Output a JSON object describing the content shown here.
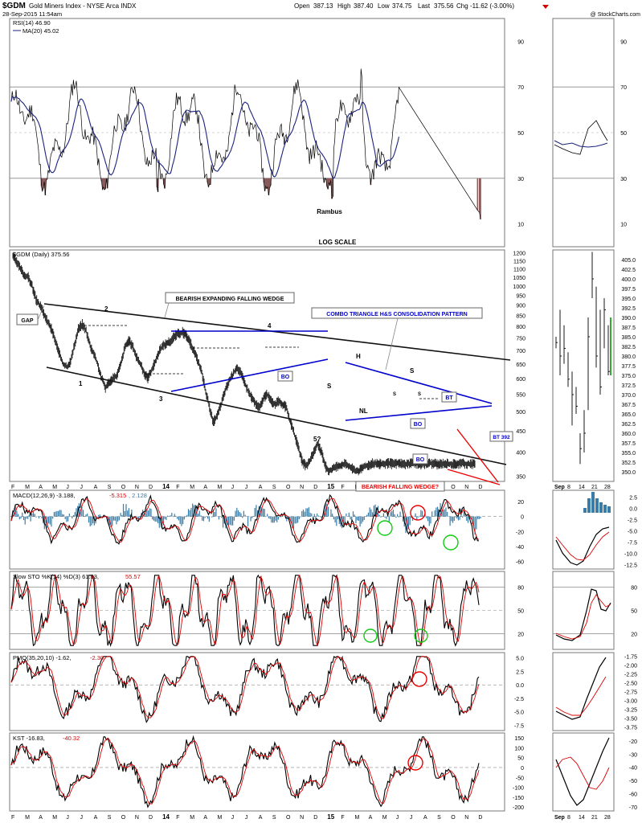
{
  "header": {
    "symbol": "$GDM",
    "name": "Gold Miners Index - NYSE Arca INDX",
    "date": "28-Sep-2015 11:54am",
    "open_label": "Open",
    "open": "387.13",
    "high_label": "High",
    "high": "387.40",
    "low_label": "Low",
    "low": "374.75",
    "last_label": "Last",
    "last": "375.56",
    "chg_label": "Chg",
    "chg": "-11.62 (-3.00%)",
    "credit": "@ StockCharts.com"
  },
  "rsi": {
    "label": "RSI(14) 46.90",
    "ma_label": "MA(20) 45.02",
    "ticks": [
      "90",
      "70",
      "50",
      "30",
      "10"
    ],
    "note1": "Rambus",
    "note2": "LOG SCALE"
  },
  "price": {
    "label": "$GDM (Daily) 375.56",
    "left_ticks": [
      "1200",
      "1150",
      "1100",
      "1050",
      "1000",
      "950",
      "900",
      "850",
      "800",
      "750",
      "700",
      "650",
      "600",
      "550",
      "500",
      "450",
      "400",
      "350"
    ],
    "right_ticks": [
      "405.0",
      "402.5",
      "400.0",
      "397.5",
      "395.0",
      "392.5",
      "390.0",
      "387.5",
      "385.0",
      "382.5",
      "380.0",
      "377.5",
      "375.0",
      "372.5",
      "370.0",
      "367.5",
      "365.0",
      "362.5",
      "360.0",
      "357.5",
      "355.0",
      "352.5",
      "350.0"
    ],
    "annotations": {
      "gap": "GAP",
      "wedge": "BEARISH EXPANDING FALLING WEDGE",
      "combo": "COMBO TRIANGLE H&S CONSOLIDATION PATTERN",
      "bo1": "BO",
      "bo2": "BO",
      "bo3": "BO",
      "bt1": "BT",
      "bt392": "BT 392",
      "falling": "BEARISH FALLING WEDGE?",
      "p1": "1",
      "p2": "2",
      "p3": "3",
      "p4": "4",
      "p5": "5?",
      "h": "H",
      "s1": "S",
      "s2": "S",
      "s3": "S",
      "s4": "S",
      "nl": "NL"
    }
  },
  "xaxis_main": [
    "F",
    "M",
    "A",
    "M",
    "J",
    "J",
    "A",
    "S",
    "O",
    "N",
    "D",
    "14",
    "F",
    "M",
    "A",
    "M",
    "J",
    "J",
    "A",
    "S",
    "O",
    "N",
    "D",
    "15",
    "F",
    "M",
    "A",
    "M",
    "J",
    "J",
    "A",
    "S",
    "O",
    "N",
    "D"
  ],
  "xaxis_right": [
    "Sep",
    "8",
    "14",
    "21",
    "28"
  ],
  "macd": {
    "label": "MACD(12,26,9) -3.188, ",
    "signal": "-5.315",
    "hist": ", 2.128",
    "ticks": [
      "20",
      "0",
      "-20",
      "-40",
      "-60"
    ],
    "right_ticks": [
      "2.5",
      "0.0",
      "-2.5",
      "-5.0",
      "-7.5",
      "-10.0",
      "-12.5"
    ]
  },
  "sto": {
    "label": "Slow STO %K(14) %D(3) 61.83, ",
    "d": "55.57",
    "ticks": [
      "80",
      "50",
      "20"
    ],
    "right_ticks": [
      "80",
      "50",
      "20"
    ]
  },
  "pmo": {
    "label": "PMO(35,20,10) -1.62, ",
    "signal": "-2.30",
    "ticks": [
      "5.0",
      "2.5",
      "0.0",
      "-2.5",
      "-5.0",
      "-7.5"
    ],
    "right_ticks": [
      "-1.75",
      "-2.00",
      "-2.25",
      "-2.50",
      "-2.75",
      "-3.00",
      "-3.25",
      "-3.50",
      "-3.75"
    ]
  },
  "kst": {
    "label": "KST -16.83, ",
    "signal": "-40.32",
    "ticks": [
      "150",
      "100",
      "50",
      "0",
      "-50",
      "-100",
      "-150",
      "-200"
    ],
    "right_ticks": [
      "-20",
      "-30",
      "-40",
      "-50",
      "-60",
      "-70"
    ]
  },
  "chart_data": {
    "type": "line",
    "title": "$GDM Gold Miners Index - NYSE Arca INDX",
    "price_series": {
      "name": "$GDM (Daily)",
      "scale": "log",
      "ylim": [
        340,
        1220
      ],
      "x": [
        0,
        5,
        10,
        15,
        20,
        25,
        30,
        35,
        40,
        45,
        50,
        55,
        60,
        65,
        70,
        75,
        80,
        85,
        90,
        95,
        100,
        105,
        110,
        115,
        120,
        125,
        130,
        135,
        140,
        145,
        150,
        155,
        160,
        165,
        170,
        175,
        180,
        185,
        190,
        195,
        200,
        205,
        210,
        215,
        220,
        225,
        230,
        235,
        240,
        245,
        250,
        255,
        260,
        265,
        270,
        275,
        280,
        285,
        290,
        295,
        300,
        305,
        310,
        315,
        320,
        325,
        330,
        335,
        340,
        345,
        350,
        355,
        360,
        365,
        370,
        375,
        380,
        385,
        390,
        395,
        400,
        405,
        410,
        415,
        420,
        425,
        430,
        435,
        440,
        445,
        450,
        455,
        460,
        465,
        470,
        475,
        480,
        485,
        490,
        495,
        500,
        505,
        510,
        515,
        520,
        525,
        530,
        535,
        540,
        545,
        550,
        555,
        560,
        565,
        570,
        575,
        580,
        585,
        590,
        595,
        600
      ],
      "y": [
        1180,
        1140,
        1100,
        1060,
        1050,
        1000,
        930,
        900,
        860,
        820,
        790,
        740,
        690,
        650,
        640,
        660,
        720,
        790,
        810,
        780,
        720,
        690,
        650,
        600,
        570,
        590,
        600,
        610,
        650,
        710,
        740,
        720,
        680,
        650,
        620,
        600,
        630,
        660,
        700,
        720,
        730,
        740,
        760,
        770,
        775,
        760,
        730,
        700,
        660,
        620,
        560,
        510,
        470,
        490,
        520,
        560,
        590,
        610,
        640,
        620,
        590,
        560,
        540,
        520,
        510,
        540,
        550,
        530,
        520,
        530,
        520,
        510,
        470,
        440,
        410,
        380,
        370,
        380,
        400,
        420,
        400,
        370,
        360,
        365,
        370,
        372,
        375,
        370,
        365,
        360,
        362,
        368,
        372,
        375,
        376,
        375,
        374,
        376,
        375,
        374,
        376,
        375,
        374,
        375,
        376,
        375,
        374,
        375,
        376,
        375,
        374,
        375,
        376,
        375,
        374,
        375,
        376,
        375,
        374,
        375,
        375.56
      ]
    },
    "rsi_series": {
      "name": "RSI(14)",
      "last": 46.9,
      "ylim": [
        0,
        100
      ]
    },
    "macd_series": {
      "name": "MACD(12,26,9)",
      "last": -3.188,
      "signal": -5.315,
      "hist": 2.128
    },
    "sto_series": {
      "name": "Slow STO %K(14) %D(3)",
      "k": 61.83,
      "d": 55.57
    },
    "pmo_series": {
      "name": "PMO(35,20,10)",
      "last": -1.62,
      "signal": -2.3
    },
    "kst_series": {
      "name": "KST",
      "last": -16.83,
      "signal": -40.32
    }
  }
}
